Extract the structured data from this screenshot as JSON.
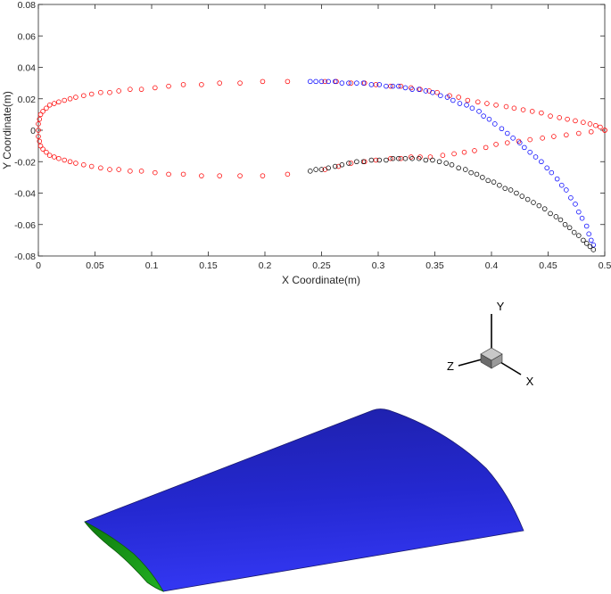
{
  "chart_data": {
    "type": "scatter",
    "xlabel": "X Coordinate(m)",
    "ylabel": "Y Coordinate(m)",
    "xlim": [
      0,
      0.5
    ],
    "ylim": [
      -0.08,
      0.08
    ],
    "x_ticks": [
      "0",
      "0.05",
      "0.1",
      "0.15",
      "0.2",
      "0.25",
      "0.3",
      "0.35",
      "0.4",
      "0.45",
      "0.5"
    ],
    "y_ticks": [
      "0.08",
      "0.06",
      "0.04",
      "0.02",
      "0",
      "-0.02",
      "-0.04",
      "-0.06",
      "-0.08"
    ],
    "grid": false,
    "marker": "open-circle",
    "series": [
      {
        "color": "#ff0000",
        "points": [
          [
            0.0,
            0.0
          ],
          [
            0.0,
            0.004
          ],
          [
            0.001,
            0.007
          ],
          [
            0.002,
            0.01
          ],
          [
            0.004,
            0.012
          ],
          [
            0.007,
            0.014
          ],
          [
            0.01,
            0.016
          ],
          [
            0.014,
            0.017
          ],
          [
            0.018,
            0.018
          ],
          [
            0.023,
            0.019
          ],
          [
            0.028,
            0.02
          ],
          [
            0.033,
            0.021
          ],
          [
            0.04,
            0.022
          ],
          [
            0.047,
            0.023
          ],
          [
            0.055,
            0.024
          ],
          [
            0.063,
            0.024
          ],
          [
            0.071,
            0.025
          ],
          [
            0.081,
            0.026
          ],
          [
            0.091,
            0.026
          ],
          [
            0.103,
            0.027
          ],
          [
            0.115,
            0.028
          ],
          [
            0.128,
            0.029
          ],
          [
            0.144,
            0.029
          ],
          [
            0.16,
            0.03
          ],
          [
            0.178,
            0.03
          ],
          [
            0.198,
            0.031
          ],
          [
            0.22,
            0.031
          ],
          [
            0.253,
            0.031
          ],
          [
            0.263,
            0.031
          ],
          [
            0.276,
            0.03
          ],
          [
            0.288,
            0.03
          ],
          [
            0.298,
            0.029
          ],
          [
            0.311,
            0.028
          ],
          [
            0.32,
            0.028
          ],
          [
            0.329,
            0.027
          ],
          [
            0.337,
            0.026
          ],
          [
            0.345,
            0.025
          ],
          [
            0.352,
            0.024
          ],
          [
            0.363,
            0.022
          ],
          [
            0.371,
            0.021
          ],
          [
            0.379,
            0.019
          ],
          [
            0.388,
            0.018
          ],
          [
            0.396,
            0.017
          ],
          [
            0.404,
            0.016
          ],
          [
            0.413,
            0.015
          ],
          [
            0.42,
            0.014
          ],
          [
            0.428,
            0.013
          ],
          [
            0.436,
            0.012
          ],
          [
            0.444,
            0.011
          ],
          [
            0.452,
            0.009
          ],
          [
            0.46,
            0.008
          ],
          [
            0.467,
            0.007
          ],
          [
            0.474,
            0.006
          ],
          [
            0.481,
            0.005
          ],
          [
            0.487,
            0.004
          ],
          [
            0.492,
            0.003
          ],
          [
            0.496,
            0.002
          ],
          [
            0.5,
            0.0
          ],
          [
            0.0,
            -0.004
          ],
          [
            0.001,
            -0.007
          ],
          [
            0.002,
            -0.01
          ],
          [
            0.004,
            -0.012
          ],
          [
            0.007,
            -0.014
          ],
          [
            0.01,
            -0.016
          ],
          [
            0.014,
            -0.017
          ],
          [
            0.018,
            -0.018
          ],
          [
            0.023,
            -0.019
          ],
          [
            0.028,
            -0.02
          ],
          [
            0.033,
            -0.021
          ],
          [
            0.04,
            -0.022
          ],
          [
            0.047,
            -0.023
          ],
          [
            0.055,
            -0.024
          ],
          [
            0.063,
            -0.025
          ],
          [
            0.071,
            -0.025
          ],
          [
            0.081,
            -0.026
          ],
          [
            0.091,
            -0.026
          ],
          [
            0.103,
            -0.027
          ],
          [
            0.115,
            -0.028
          ],
          [
            0.128,
            -0.028
          ],
          [
            0.144,
            -0.029
          ],
          [
            0.16,
            -0.029
          ],
          [
            0.178,
            -0.029
          ],
          [
            0.198,
            -0.029
          ],
          [
            0.22,
            -0.028
          ],
          [
            0.253,
            -0.025
          ],
          [
            0.265,
            -0.023
          ],
          [
            0.276,
            -0.021
          ],
          [
            0.288,
            -0.02
          ],
          [
            0.298,
            -0.019
          ],
          [
            0.311,
            -0.018
          ],
          [
            0.32,
            -0.018
          ],
          [
            0.329,
            -0.017
          ],
          [
            0.337,
            -0.017
          ],
          [
            0.346,
            -0.017
          ],
          [
            0.357,
            -0.016
          ],
          [
            0.367,
            -0.015
          ],
          [
            0.376,
            -0.014
          ],
          [
            0.385,
            -0.013
          ],
          [
            0.395,
            -0.011
          ],
          [
            0.404,
            -0.009
          ],
          [
            0.414,
            -0.008
          ],
          [
            0.424,
            -0.007
          ],
          [
            0.434,
            -0.006
          ],
          [
            0.445,
            -0.005
          ],
          [
            0.455,
            -0.004
          ],
          [
            0.466,
            -0.003
          ],
          [
            0.477,
            -0.002
          ],
          [
            0.488,
            -0.001
          ],
          [
            0.5,
            0.0
          ]
        ]
      },
      {
        "color": "#0000ff",
        "points": [
          [
            0.24,
            0.031
          ],
          [
            0.245,
            0.031
          ],
          [
            0.25,
            0.031
          ],
          [
            0.256,
            0.031
          ],
          [
            0.262,
            0.031
          ],
          [
            0.268,
            0.03
          ],
          [
            0.274,
            0.03
          ],
          [
            0.281,
            0.03
          ],
          [
            0.287,
            0.03
          ],
          [
            0.294,
            0.029
          ],
          [
            0.301,
            0.029
          ],
          [
            0.307,
            0.028
          ],
          [
            0.313,
            0.028
          ],
          [
            0.318,
            0.028
          ],
          [
            0.324,
            0.027
          ],
          [
            0.33,
            0.026
          ],
          [
            0.336,
            0.026
          ],
          [
            0.342,
            0.025
          ],
          [
            0.348,
            0.024
          ],
          [
            0.355,
            0.022
          ],
          [
            0.361,
            0.021
          ],
          [
            0.366,
            0.019
          ],
          [
            0.372,
            0.017
          ],
          [
            0.378,
            0.016
          ],
          [
            0.383,
            0.014
          ],
          [
            0.389,
            0.012
          ],
          [
            0.393,
            0.009
          ],
          [
            0.398,
            0.007
          ],
          [
            0.403,
            0.004
          ],
          [
            0.409,
            0.001
          ],
          [
            0.414,
            -0.002
          ],
          [
            0.419,
            -0.005
          ],
          [
            0.425,
            -0.008
          ],
          [
            0.429,
            -0.011
          ],
          [
            0.434,
            -0.014
          ],
          [
            0.439,
            -0.017
          ],
          [
            0.444,
            -0.02
          ],
          [
            0.449,
            -0.024
          ],
          [
            0.453,
            -0.027
          ],
          [
            0.458,
            -0.031
          ],
          [
            0.462,
            -0.035
          ],
          [
            0.466,
            -0.038
          ],
          [
            0.47,
            -0.043
          ],
          [
            0.474,
            -0.047
          ],
          [
            0.477,
            -0.052
          ],
          [
            0.48,
            -0.056
          ],
          [
            0.484,
            -0.061
          ],
          [
            0.486,
            -0.066
          ],
          [
            0.488,
            -0.07
          ],
          [
            0.49,
            -0.073
          ]
        ]
      },
      {
        "color": "#000000",
        "points": [
          [
            0.24,
            -0.026
          ],
          [
            0.245,
            -0.025
          ],
          [
            0.25,
            -0.025
          ],
          [
            0.256,
            -0.024
          ],
          [
            0.262,
            -0.023
          ],
          [
            0.268,
            -0.022
          ],
          [
            0.274,
            -0.021
          ],
          [
            0.281,
            -0.02
          ],
          [
            0.287,
            -0.02
          ],
          [
            0.294,
            -0.019
          ],
          [
            0.301,
            -0.019
          ],
          [
            0.307,
            -0.019
          ],
          [
            0.313,
            -0.018
          ],
          [
            0.318,
            -0.018
          ],
          [
            0.324,
            -0.018
          ],
          [
            0.33,
            -0.018
          ],
          [
            0.336,
            -0.018
          ],
          [
            0.342,
            -0.019
          ],
          [
            0.348,
            -0.019
          ],
          [
            0.354,
            -0.02
          ],
          [
            0.36,
            -0.021
          ],
          [
            0.365,
            -0.022
          ],
          [
            0.371,
            -0.024
          ],
          [
            0.377,
            -0.025
          ],
          [
            0.382,
            -0.027
          ],
          [
            0.387,
            -0.028
          ],
          [
            0.392,
            -0.03
          ],
          [
            0.397,
            -0.032
          ],
          [
            0.402,
            -0.033
          ],
          [
            0.407,
            -0.035
          ],
          [
            0.412,
            -0.037
          ],
          [
            0.417,
            -0.038
          ],
          [
            0.422,
            -0.04
          ],
          [
            0.427,
            -0.042
          ],
          [
            0.432,
            -0.044
          ],
          [
            0.437,
            -0.046
          ],
          [
            0.442,
            -0.048
          ],
          [
            0.447,
            -0.05
          ],
          [
            0.452,
            -0.053
          ],
          [
            0.457,
            -0.055
          ],
          [
            0.461,
            -0.057
          ],
          [
            0.465,
            -0.06
          ],
          [
            0.469,
            -0.062
          ],
          [
            0.473,
            -0.065
          ],
          [
            0.477,
            -0.067
          ],
          [
            0.481,
            -0.07
          ],
          [
            0.484,
            -0.072
          ],
          [
            0.487,
            -0.074
          ],
          [
            0.49,
            -0.076
          ]
        ]
      }
    ]
  },
  "view3d": {
    "axis_labels": {
      "x": "X",
      "y": "Y",
      "z": "Z"
    },
    "wing_color": "#2b2ef0",
    "root_color": "#1a9a1a"
  }
}
